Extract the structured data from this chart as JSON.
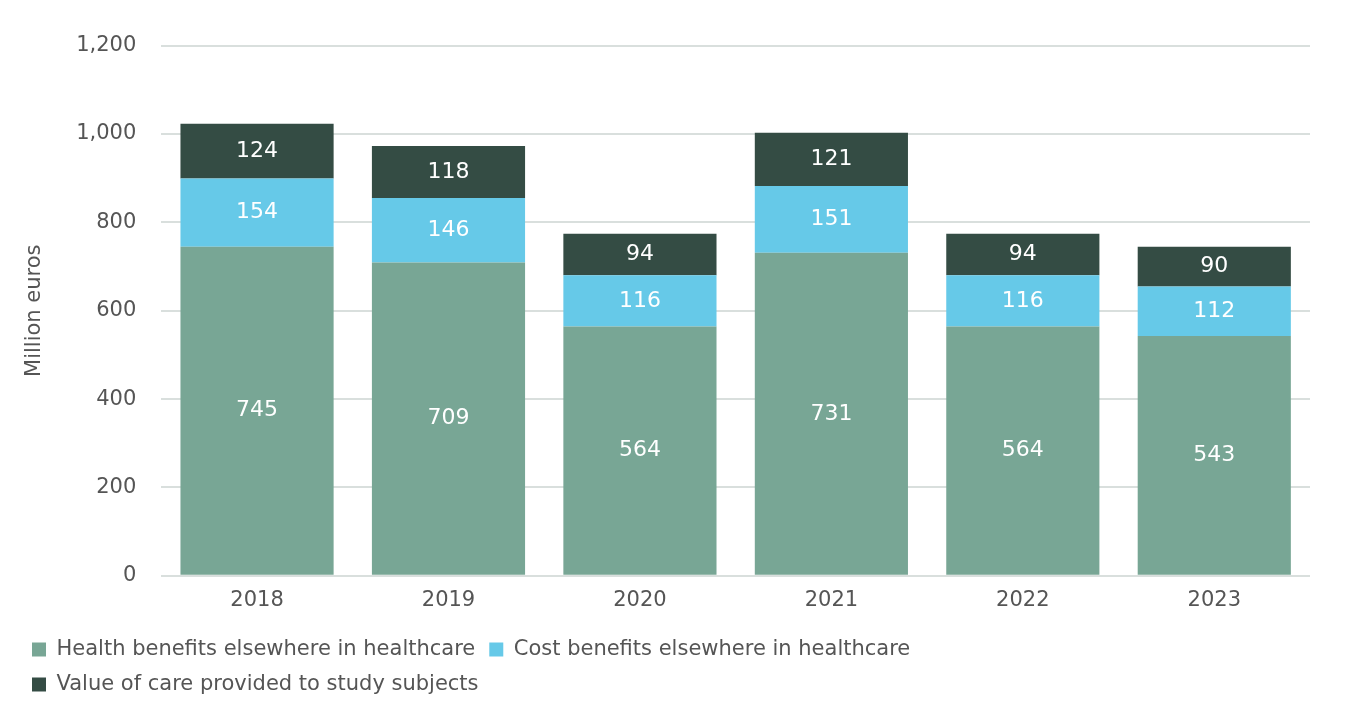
{
  "chart_data": {
    "type": "bar",
    "ylabel": "Million euros",
    "categories": [
      "2018",
      "2019",
      "2020",
      "2021",
      "2022",
      "2023"
    ],
    "stacked": true,
    "series": [
      {
        "name": "Health benefits elsewhere in healthcare",
        "color": "#78a695",
        "values": [
          745,
          709,
          564,
          731,
          564,
          543
        ]
      },
      {
        "name": "Cost benefits elsewhere in healthcare",
        "color": "#66c9e8",
        "values": [
          154,
          146,
          116,
          151,
          116,
          112
        ]
      },
      {
        "name": "Value of care provided to study subjects",
        "color": "#344c44",
        "values": [
          124,
          118,
          94,
          121,
          94,
          90
        ]
      }
    ],
    "ylim": [
      0,
      1200
    ],
    "yticks": [
      {
        "value": 0,
        "label": "0"
      },
      {
        "value": 200,
        "label": "200"
      },
      {
        "value": 400,
        "label": "400"
      },
      {
        "value": 600,
        "label": "600"
      },
      {
        "value": 800,
        "label": "800"
      },
      {
        "value": 1000,
        "label": "1,000"
      },
      {
        "value": 1200,
        "label": "1,200"
      }
    ],
    "grid": "y",
    "legend": "bottom",
    "data_labels": true
  }
}
